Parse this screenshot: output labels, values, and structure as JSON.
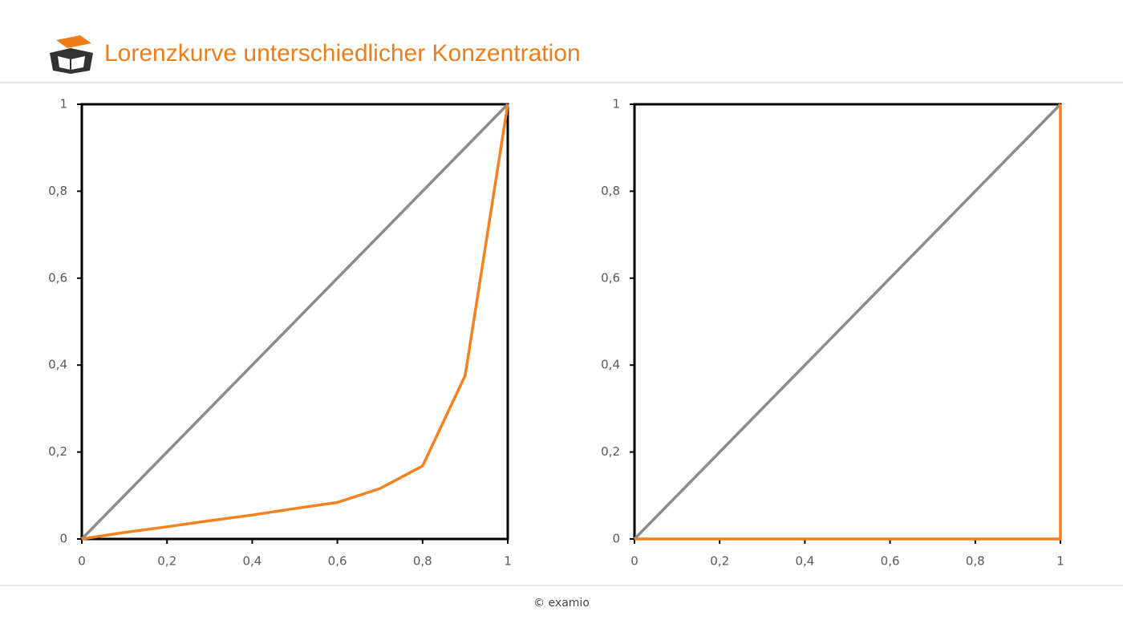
{
  "header": {
    "title": "Lorenzkurve unterschiedlicher Konzentration"
  },
  "footer": {
    "text": "© examio"
  },
  "chart_data": [
    {
      "type": "line",
      "xlim": [
        0,
        1
      ],
      "ylim": [
        0,
        1
      ],
      "xticks": [
        0,
        {
          "value": 0.2,
          "label": "0,2"
        },
        {
          "value": 0.4,
          "label": "0,4"
        },
        {
          "value": 0.6,
          "label": "0,6"
        },
        {
          "value": 0.8,
          "label": "0,8"
        },
        1
      ],
      "yticks": [
        0,
        {
          "value": 0.2,
          "label": "0,2"
        },
        {
          "value": 0.4,
          "label": "0,4"
        },
        {
          "value": 0.6,
          "label": "0,6"
        },
        {
          "value": 0.8,
          "label": "0,8"
        },
        1
      ],
      "series": [
        {
          "color": "#8c8c8c",
          "x": [
            0,
            1
          ],
          "values": [
            0,
            1
          ]
        },
        {
          "color": "#f5801e",
          "x": [
            0,
            0.1,
            0.2,
            0.3,
            0.4,
            0.5,
            0.6,
            0.7,
            0.8,
            0.9,
            1
          ],
          "values": [
            0,
            0.015,
            0.028,
            0.042,
            0.055,
            0.07,
            0.084,
            0.116,
            0.168,
            0.376,
            1
          ]
        }
      ]
    },
    {
      "type": "line",
      "xlim": [
        0,
        1
      ],
      "ylim": [
        0,
        1
      ],
      "xticks": [
        0,
        {
          "value": 0.2,
          "label": "0,2"
        },
        {
          "value": 0.4,
          "label": "0,4"
        },
        {
          "value": 0.6,
          "label": "0,6"
        },
        {
          "value": 0.8,
          "label": "0,8"
        },
        1
      ],
      "yticks": [
        0,
        {
          "value": 0.2,
          "label": "0,2"
        },
        {
          "value": 0.4,
          "label": "0,4"
        },
        {
          "value": 0.6,
          "label": "0,6"
        },
        {
          "value": 0.8,
          "label": "0,8"
        },
        1
      ],
      "series": [
        {
          "color": "#8c8c8c",
          "x": [
            0,
            1
          ],
          "values": [
            0,
            1
          ]
        },
        {
          "color": "#f5801e",
          "x": [
            0,
            1,
            1
          ],
          "values": [
            0,
            0,
            1
          ]
        }
      ]
    }
  ]
}
